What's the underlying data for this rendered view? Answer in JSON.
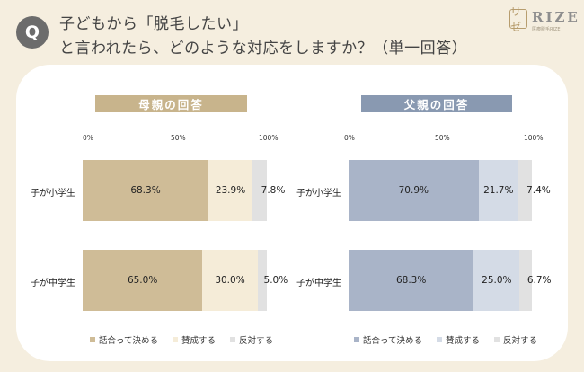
{
  "header": {
    "badge": "Q",
    "title_line1": "子どもから「脱毛したい」",
    "title_line2": "と言われたら、どのような対応をしますか？（単一回答）",
    "logo_mark": "リゼ",
    "logo_word": "RIZE",
    "logo_sub": "医療脱毛RIZE"
  },
  "colors": {
    "mother": [
      "#cfbc97",
      "#f5ecd8",
      "#e1e1e1"
    ],
    "father": [
      "#a9b4c8",
      "#d4dbe6",
      "#e1e1e1"
    ],
    "mother_title": "#c8b48c",
    "father_title": "#8999b1"
  },
  "chart_data": [
    {
      "type": "bar",
      "stacked": true,
      "orientation": "horizontal",
      "title": "母親の回答",
      "categories": [
        "子が小学生",
        "子が中学生"
      ],
      "series": [
        {
          "name": "話合って決める",
          "values": [
            68.3,
            65.0
          ]
        },
        {
          "name": "賛成する",
          "values": [
            23.9,
            30.0
          ]
        },
        {
          "name": "反対する",
          "values": [
            7.8,
            5.0
          ]
        }
      ],
      "data_labels": [
        [
          "68.3%",
          "23.9%",
          "7.8%"
        ],
        [
          "65.0%",
          "30.0%",
          "5.0%"
        ]
      ],
      "xticks": [
        "0%",
        "50%",
        "100%"
      ],
      "xlim": [
        0,
        100
      ],
      "legend": "bottom"
    },
    {
      "type": "bar",
      "stacked": true,
      "orientation": "horizontal",
      "title": "父親の回答",
      "categories": [
        "子が小学生",
        "子が中学生"
      ],
      "series": [
        {
          "name": "話合って決める",
          "values": [
            70.9,
            68.3
          ]
        },
        {
          "name": "賛成する",
          "values": [
            21.7,
            25.0
          ]
        },
        {
          "name": "反対する",
          "values": [
            7.4,
            6.7
          ]
        }
      ],
      "data_labels": [
        [
          "70.9%",
          "21.7%",
          "7.4%"
        ],
        [
          "68.3%",
          "25.0%",
          "6.7%"
        ]
      ],
      "xticks": [
        "0%",
        "50%",
        "100%"
      ],
      "xlim": [
        0,
        100
      ],
      "legend": "bottom"
    }
  ]
}
